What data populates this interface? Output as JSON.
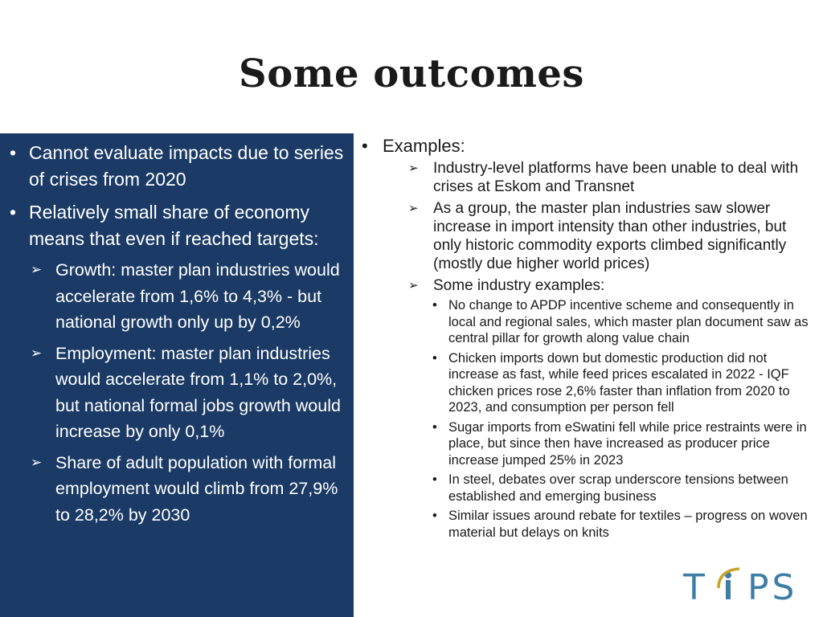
{
  "slide": {
    "title": "Some outcomes"
  },
  "left": {
    "items": [
      {
        "text": "Cannot evaluate impacts due to series of crises from 2020"
      },
      {
        "text": "Relatively small share of economy means that even if reached targets:"
      }
    ],
    "sub_items": [
      {
        "text": "Growth: master plan industries would accelerate from 1,6% to 4,3% - but national growth only up by 0,2%"
      },
      {
        "text": "Employment: master plan industries would accelerate from 1,1% to 2,0%, but national formal jobs growth would increase by only 0,1%"
      },
      {
        "text": "Share of adult population with formal employment would climb from 27,9% to 28,2% by 2030"
      }
    ]
  },
  "right": {
    "heading": "Examples:",
    "items": [
      {
        "text": "Industry-level platforms have been unable to deal with crises at Eskom and Transnet"
      },
      {
        "text": "As a group, the master plan industries saw slower increase in import intensity than other industries, but only historic commodity exports climbed significantly (mostly due higher world prices)"
      },
      {
        "text": "Some industry examples:"
      }
    ],
    "examples": [
      {
        "text": "No change to APDP incentive scheme and consequently in local and regional sales, which master plan document saw as central pillar for growth along value chain"
      },
      {
        "text": "Chicken imports down but domestic production did not increase as fast, while feed prices escalated in 2022 - IQF chicken prices rose 2,6% faster than inflation from 2020 to 2023, and consumption per person fell"
      },
      {
        "text": "Sugar imports from eSwatini fell while price restraints were in place, but since then have increased as producer price increase jumped 25% in 2023"
      },
      {
        "text": "In steel, debates over scrap underscore tensions between established and emerging business"
      },
      {
        "text": "Similar issues around rebate for textiles – progress on woven material but delays on knits"
      }
    ]
  },
  "logo": {
    "text_before": "T",
    "text_after": "PS",
    "colors": {
      "text": "#3d7ea6",
      "accent": "#c9a227",
      "panel": "#1b3b66"
    }
  }
}
